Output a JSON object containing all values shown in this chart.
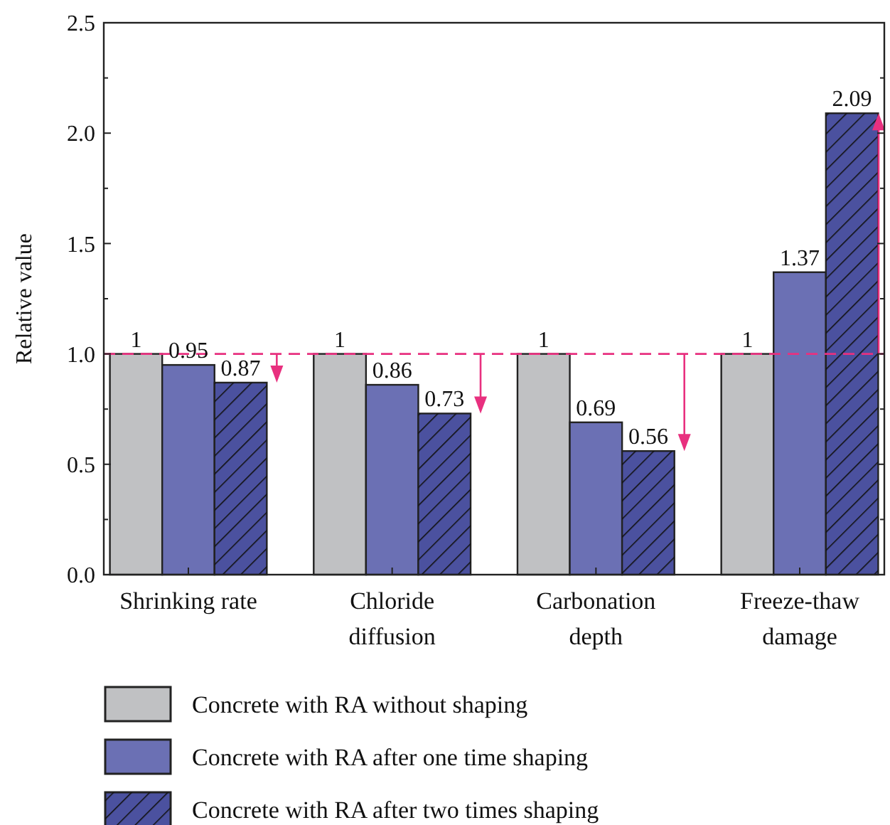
{
  "chart_data": {
    "type": "bar",
    "ylabel": "Relative value",
    "categories": [
      "Shrinking rate",
      "Chloride diffusion",
      "Carbonation depth",
      "Freeze-thaw damage"
    ],
    "series": [
      {
        "name": "Concrete with RA without shaping",
        "color": "#c0c1c3",
        "values": [
          1,
          1,
          1,
          1
        ]
      },
      {
        "name": "Concrete with RA after one time shaping",
        "color": "#6b70b4",
        "values": [
          0.95,
          0.86,
          0.69,
          1.37
        ]
      },
      {
        "name": "Concrete with RA after two times shaping",
        "color": "#4b519f",
        "values": [
          0.87,
          0.73,
          0.56,
          2.09
        ]
      }
    ],
    "ylim": [
      0,
      2.5
    ],
    "yticks": [
      {
        "value": 0,
        "label": "0.0"
      },
      {
        "value": 0.5,
        "label": "0.5"
      },
      {
        "value": 1,
        "label": "1.0"
      },
      {
        "value": 1.5,
        "label": "1.5"
      },
      {
        "value": 2,
        "label": "2.0"
      },
      {
        "value": 2.5,
        "label": "2.5"
      }
    ],
    "ref_lines": [
      {
        "axis": "y",
        "value": 1,
        "color": "#e8307f",
        "line_style": "dashed"
      }
    ],
    "data_labels": true,
    "grid": false,
    "legend": "bottom"
  }
}
